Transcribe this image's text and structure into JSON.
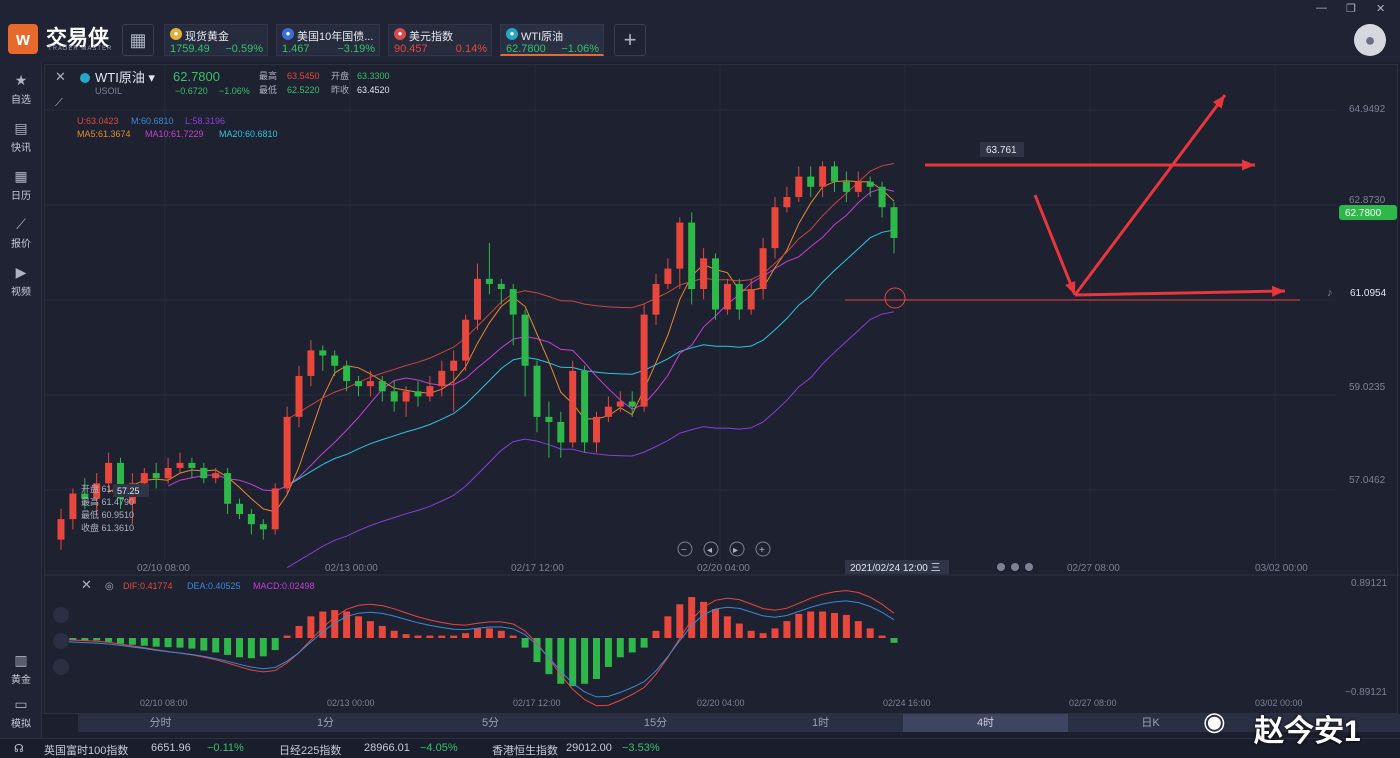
{
  "app": {
    "name": "交易侠",
    "sub": "TRADER MASTER"
  },
  "tabs": [
    {
      "name": "现货黄金",
      "price": "1759.49",
      "change": "−0.59%",
      "color": "#e0b03a"
    },
    {
      "name": "美国10年国债...",
      "price": "1.467",
      "change": "−3.19%",
      "color": "#3a6fd8"
    },
    {
      "name": "美元指数",
      "price": "90.457",
      "change": "0.14%",
      "color": "#d84a4a"
    },
    {
      "name": "WTI原油",
      "price": "62.7800",
      "change": "−1.06%",
      "color": "#25a8c8"
    }
  ],
  "sidebar": {
    "top": [
      {
        "label": "自选",
        "icon": "star-icon"
      },
      {
        "label": "快讯",
        "icon": "news-icon"
      },
      {
        "label": "日历",
        "icon": "calendar-icon"
      },
      {
        "label": "报价",
        "icon": "quote-icon"
      },
      {
        "label": "视频",
        "icon": "video-icon"
      }
    ],
    "bottom": [
      {
        "label": "黄金",
        "icon": "gold-icon"
      },
      {
        "label": "模拟",
        "icon": "wallet-icon"
      }
    ]
  },
  "instrument": {
    "name": "WTI原油",
    "code": "USOIL",
    "price": "62.7800",
    "change": "−0.6720",
    "change_pct": "−1.06%",
    "high_label": "最高",
    "high": "63.5450",
    "low_label": "最低",
    "low": "62.5220",
    "open_label": "开盘",
    "open": "63.3300",
    "prev_label": "昨收",
    "prev": "63.4520"
  },
  "indicators": {
    "boll": {
      "u": "U:63.0423",
      "m": "M:60.6810",
      "l": "L:58.3196"
    },
    "ma": {
      "ma5": "MA5:61.3674",
      "ma10": "MA10:61.7229",
      "ma20": "MA20:60.6810"
    },
    "macd": {
      "dif": "DIF:0.41774",
      "dea": "DEA:0.40525",
      "macd": "MACD:0.02498"
    }
  },
  "price_axis": {
    "ticks": [
      "64.9492",
      "62.8730",
      "59.0235",
      "57.0462"
    ],
    "current": "62.7800",
    "alert": "61.0954"
  },
  "macd_axis": {
    "ticks": [
      "0.89121",
      "−0.89121"
    ]
  },
  "time_axis": [
    "02/10 08:00",
    "02/13 00:00",
    "02/17 12:00",
    "02/20 04:00",
    "02/27 08:00",
    "03/02 00:00"
  ],
  "time_axis2": [
    "02/10 08:00",
    "02/13 00:00",
    "02/17 12:00",
    "02/20 04:00",
    "02/24 16:00",
    "02/27 08:00",
    "03/02 00:00"
  ],
  "crosshair": {
    "time": "2021/02/24 12:00 三",
    "price": "57.25"
  },
  "ohlc_tip": {
    "open": "开盘 61.5400",
    "high": "最高 61.4790",
    "low": "最低 60.9510",
    "close": "收盘 61.3610"
  },
  "peak_label": "63.761",
  "period_tabs": [
    "分时",
    "1分",
    "5分",
    "15分",
    "1时",
    "4时",
    "日K"
  ],
  "status": [
    {
      "name": "英国富时100指数",
      "price": "6651.96",
      "change": "−0.11%"
    },
    {
      "name": "日经225指数",
      "price": "28966.01",
      "change": "−4.05%"
    },
    {
      "name": "香港恒生指数",
      "price": "29012.00",
      "change": "−3.53%"
    }
  ],
  "watermark": "赵今安1",
  "chart_data": {
    "type": "candlestick",
    "candles": [
      [
        56.9,
        57.3,
        57.5,
        56.7
      ],
      [
        57.3,
        57.8,
        57.9,
        57.1
      ],
      [
        57.8,
        57.7,
        58.1,
        57.5
      ],
      [
        57.7,
        58.0,
        58.2,
        57.4
      ],
      [
        58.0,
        58.4,
        58.6,
        57.8
      ],
      [
        58.4,
        57.7,
        58.5,
        57.5
      ],
      [
        57.6,
        58.0,
        58.2,
        57.2
      ],
      [
        58.0,
        58.2,
        58.3,
        57.8
      ],
      [
        58.2,
        58.1,
        58.4,
        57.9
      ],
      [
        58.1,
        58.3,
        58.5,
        58.0
      ],
      [
        58.3,
        58.4,
        58.6,
        58.2
      ],
      [
        58.4,
        58.3,
        58.5,
        58.1
      ],
      [
        58.3,
        58.1,
        58.4,
        58.0
      ],
      [
        58.1,
        58.2,
        58.3,
        58.0
      ],
      [
        58.2,
        57.6,
        58.3,
        57.4
      ],
      [
        57.6,
        57.4,
        57.7,
        57.3
      ],
      [
        57.4,
        57.2,
        57.5,
        57.0
      ],
      [
        57.2,
        57.1,
        57.3,
        56.9
      ],
      [
        57.1,
        57.9,
        58.0,
        57.0
      ],
      [
        57.9,
        59.3,
        59.5,
        57.8
      ],
      [
        59.3,
        60.1,
        60.3,
        59.1
      ],
      [
        60.1,
        60.6,
        60.8,
        59.9
      ],
      [
        60.6,
        60.5,
        60.7,
        60.2
      ],
      [
        60.5,
        60.3,
        60.6,
        60.1
      ],
      [
        60.3,
        60.0,
        60.4,
        59.8
      ],
      [
        60.0,
        59.9,
        60.1,
        59.7
      ],
      [
        59.9,
        60.0,
        60.2,
        59.7
      ],
      [
        60.0,
        59.8,
        60.1,
        59.6
      ],
      [
        59.8,
        59.6,
        60.0,
        59.4
      ],
      [
        59.6,
        59.8,
        59.9,
        59.3
      ],
      [
        59.8,
        59.7,
        60.0,
        59.5
      ],
      [
        59.7,
        59.9,
        60.1,
        59.6
      ],
      [
        59.9,
        60.2,
        60.4,
        59.7
      ],
      [
        60.2,
        60.4,
        60.6,
        59.4
      ],
      [
        60.4,
        61.2,
        61.3,
        60.2
      ],
      [
        61.2,
        62.0,
        62.3,
        61.0
      ],
      [
        62.0,
        61.9,
        62.7,
        61.7
      ],
      [
        61.9,
        61.8,
        62.0,
        61.5
      ],
      [
        61.8,
        61.3,
        61.9,
        60.7
      ],
      [
        61.3,
        60.3,
        61.4,
        59.7
      ],
      [
        60.3,
        59.3,
        60.4,
        59.0
      ],
      [
        59.3,
        59.2,
        59.6,
        58.5
      ],
      [
        59.2,
        58.8,
        59.4,
        58.5
      ],
      [
        58.8,
        60.2,
        60.4,
        58.7
      ],
      [
        60.2,
        58.8,
        60.3,
        58.6
      ],
      [
        58.8,
        59.3,
        59.4,
        58.6
      ],
      [
        59.3,
        59.5,
        59.7,
        59.2
      ],
      [
        59.5,
        59.6,
        59.8,
        59.4
      ],
      [
        59.6,
        59.5,
        59.8,
        59.3
      ],
      [
        59.5,
        61.3,
        61.5,
        59.4
      ],
      [
        61.3,
        61.9,
        62.1,
        61.1
      ],
      [
        61.9,
        62.2,
        62.4,
        61.8
      ],
      [
        62.2,
        63.1,
        63.2,
        61.8
      ],
      [
        63.1,
        61.8,
        63.3,
        61.5
      ],
      [
        61.8,
        62.4,
        62.6,
        61.6
      ],
      [
        62.4,
        61.4,
        62.5,
        61.2
      ],
      [
        61.4,
        61.9,
        62.0,
        61.3
      ],
      [
        61.9,
        61.4,
        62.0,
        61.2
      ],
      [
        61.4,
        61.8,
        62.0,
        61.3
      ],
      [
        61.8,
        62.6,
        62.8,
        61.6
      ],
      [
        62.6,
        63.4,
        63.6,
        62.4
      ],
      [
        63.4,
        63.6,
        63.8,
        63.3
      ],
      [
        63.6,
        64.0,
        64.2,
        63.5
      ],
      [
        64.0,
        63.8,
        64.2,
        63.6
      ],
      [
        63.8,
        64.2,
        64.3,
        63.6
      ],
      [
        64.2,
        63.9,
        64.3,
        63.7
      ],
      [
        63.9,
        63.7,
        64.1,
        63.5
      ],
      [
        63.7,
        63.9,
        64.1,
        63.6
      ],
      [
        63.9,
        63.8,
        64.0,
        63.6
      ],
      [
        63.8,
        63.4,
        63.9,
        63.2
      ],
      [
        63.4,
        62.8,
        63.5,
        62.5
      ]
    ],
    "ylim": [
      56.5,
      65.4
    ],
    "macd_hist": [
      -0.05,
      -0.05,
      -0.05,
      -0.05,
      -0.08,
      -0.12,
      -0.14,
      -0.16,
      -0.18,
      -0.19,
      -0.2,
      -0.22,
      -0.26,
      -0.3,
      -0.35,
      -0.4,
      -0.42,
      -0.38,
      -0.25,
      0.05,
      0.25,
      0.45,
      0.55,
      0.58,
      0.55,
      0.45,
      0.35,
      0.25,
      0.15,
      0.08,
      0.05,
      0.05,
      0.05,
      0.05,
      0.1,
      0.2,
      0.2,
      0.15,
      0.05,
      -0.2,
      -0.5,
      -0.75,
      -0.95,
      -1.0,
      -0.95,
      -0.85,
      -0.6,
      -0.4,
      -0.3,
      -0.2,
      0.15,
      0.45,
      0.7,
      0.85,
      0.75,
      0.6,
      0.45,
      0.3,
      0.15,
      0.1,
      0.2,
      0.35,
      0.5,
      0.55,
      0.55,
      0.52,
      0.48,
      0.35,
      0.2,
      0.05,
      -0.1
    ],
    "macd_ylim": [
      -1.1,
      1.1
    ]
  }
}
